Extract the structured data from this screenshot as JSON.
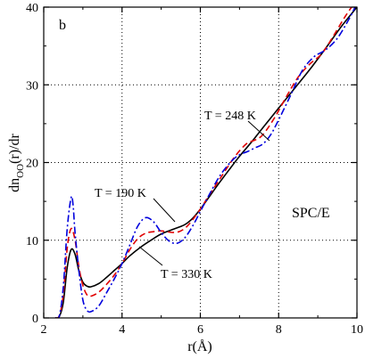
{
  "chart_data": {
    "type": "line",
    "panel_label": "b",
    "xlabel": "r(Å)",
    "ylabel_main": "dn",
    "ylabel_sub": "OO",
    "ylabel_rest": "(r)/dr",
    "xlim": [
      2,
      10
    ],
    "ylim": [
      0,
      40
    ],
    "xticks": [
      2,
      4,
      6,
      8,
      10
    ],
    "yticks": [
      0,
      10,
      20,
      30,
      40
    ],
    "grid": true,
    "model_label": "SPC/E",
    "annotations": [
      {
        "text": "T = 248 K",
        "series": "T = 248 K"
      },
      {
        "text": "T = 190 K",
        "series": "T = 190 K"
      },
      {
        "text": "T = 330 K",
        "series": "T = 330 K"
      }
    ],
    "series": [
      {
        "name": "T = 330 K",
        "color": "#000000",
        "dash": "solid",
        "points": [
          [
            2.3,
            0
          ],
          [
            2.4,
            0.2
          ],
          [
            2.5,
            2.0
          ],
          [
            2.6,
            6.5
          ],
          [
            2.7,
            8.8
          ],
          [
            2.8,
            8.2
          ],
          [
            2.9,
            6.0
          ],
          [
            3.0,
            4.6
          ],
          [
            3.1,
            4.1
          ],
          [
            3.2,
            4.0
          ],
          [
            3.4,
            4.4
          ],
          [
            3.6,
            5.2
          ],
          [
            3.8,
            6.1
          ],
          [
            4.0,
            7.0
          ],
          [
            4.2,
            8.0
          ],
          [
            4.5,
            9.2
          ],
          [
            4.8,
            10.2
          ],
          [
            5.0,
            10.8
          ],
          [
            5.3,
            11.4
          ],
          [
            5.6,
            12.0
          ],
          [
            5.8,
            12.8
          ],
          [
            6.0,
            14.0
          ],
          [
            6.2,
            15.4
          ],
          [
            6.5,
            17.5
          ],
          [
            6.8,
            19.5
          ],
          [
            7.0,
            20.8
          ],
          [
            7.3,
            22.6
          ],
          [
            7.6,
            24.5
          ],
          [
            8.0,
            27.0
          ],
          [
            8.4,
            29.5
          ],
          [
            8.8,
            32.0
          ],
          [
            9.2,
            34.7
          ],
          [
            9.6,
            37.5
          ],
          [
            10.0,
            40.0
          ]
        ]
      },
      {
        "name": "T = 248 K",
        "color": "#e00000",
        "dash": "dashed",
        "points": [
          [
            2.3,
            0
          ],
          [
            2.4,
            0.3
          ],
          [
            2.5,
            3.0
          ],
          [
            2.6,
            9.0
          ],
          [
            2.7,
            11.5
          ],
          [
            2.8,
            10.0
          ],
          [
            2.9,
            6.5
          ],
          [
            3.0,
            4.2
          ],
          [
            3.1,
            3.0
          ],
          [
            3.2,
            2.8
          ],
          [
            3.4,
            3.3
          ],
          [
            3.6,
            4.3
          ],
          [
            3.8,
            5.5
          ],
          [
            4.0,
            7.0
          ],
          [
            4.2,
            8.8
          ],
          [
            4.4,
            10.2
          ],
          [
            4.6,
            10.9
          ],
          [
            4.8,
            11.1
          ],
          [
            5.0,
            11.2
          ],
          [
            5.3,
            11.0
          ],
          [
            5.5,
            11.2
          ],
          [
            5.7,
            12.0
          ],
          [
            6.0,
            14.0
          ],
          [
            6.2,
            15.6
          ],
          [
            6.5,
            17.9
          ],
          [
            6.8,
            20.2
          ],
          [
            7.0,
            21.5
          ],
          [
            7.2,
            22.5
          ],
          [
            7.4,
            22.9
          ],
          [
            7.6,
            23.6
          ],
          [
            7.9,
            25.8
          ],
          [
            8.2,
            28.5
          ],
          [
            8.5,
            31.0
          ],
          [
            8.8,
            32.7
          ],
          [
            9.1,
            34.0
          ],
          [
            9.4,
            36.3
          ],
          [
            9.7,
            38.8
          ],
          [
            10.0,
            41.0
          ]
        ]
      },
      {
        "name": "T = 190 K",
        "color": "#0000dd",
        "dash": "dashdot",
        "points": [
          [
            2.3,
            0
          ],
          [
            2.4,
            0.3
          ],
          [
            2.5,
            4.0
          ],
          [
            2.6,
            11.5
          ],
          [
            2.7,
            15.5
          ],
          [
            2.75,
            14.5
          ],
          [
            2.8,
            11.0
          ],
          [
            2.9,
            6.0
          ],
          [
            3.0,
            2.3
          ],
          [
            3.1,
            1.0
          ],
          [
            3.2,
            0.8
          ],
          [
            3.4,
            1.5
          ],
          [
            3.6,
            3.2
          ],
          [
            3.8,
            5.0
          ],
          [
            4.0,
            7.0
          ],
          [
            4.2,
            9.4
          ],
          [
            4.4,
            11.8
          ],
          [
            4.6,
            12.9
          ],
          [
            4.8,
            12.4
          ],
          [
            5.0,
            11.0
          ],
          [
            5.2,
            9.9
          ],
          [
            5.4,
            9.6
          ],
          [
            5.6,
            10.3
          ],
          [
            5.8,
            11.8
          ],
          [
            6.0,
            13.7
          ],
          [
            6.2,
            15.6
          ],
          [
            6.5,
            18.3
          ],
          [
            6.8,
            20.2
          ],
          [
            7.0,
            21.0
          ],
          [
            7.2,
            21.4
          ],
          [
            7.4,
            21.9
          ],
          [
            7.6,
            22.4
          ],
          [
            7.8,
            23.6
          ],
          [
            8.0,
            25.5
          ],
          [
            8.3,
            28.6
          ],
          [
            8.6,
            31.8
          ],
          [
            8.9,
            33.6
          ],
          [
            9.2,
            34.5
          ],
          [
            9.5,
            36.0
          ],
          [
            9.8,
            38.5
          ],
          [
            10.0,
            40.5
          ]
        ]
      }
    ]
  }
}
